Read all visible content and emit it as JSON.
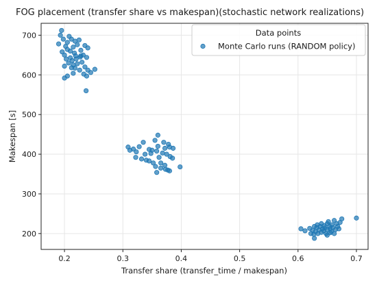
{
  "chart_data": {
    "type": "scatter",
    "title": "FOG placement (transfer share vs makespan)(stochastic network realizations)",
    "xlabel": "Transfer share (transfer_time / makespan)",
    "ylabel": "Makespan [s]",
    "xlim": [
      0.16,
      0.72
    ],
    "ylim": [
      160,
      730
    ],
    "xticks": [
      0.2,
      0.3,
      0.4,
      0.5,
      0.6,
      0.7
    ],
    "xtick_labels": [
      "0.2",
      "0.3",
      "0.4",
      "0.5",
      "0.6",
      "0.7"
    ],
    "yticks": [
      200,
      300,
      400,
      500,
      600,
      700
    ],
    "ytick_labels": [
      "200",
      "300",
      "400",
      "500",
      "600",
      "700"
    ],
    "grid": true,
    "legend": {
      "title": "Data points",
      "placement": "top-right"
    },
    "series": [
      {
        "name": "Monte Carlo runs (RANDOM policy)",
        "color": "#1f77b4",
        "points": [
          {
            "x": 0.195,
            "y": 712
          },
          {
            "x": 0.193,
            "y": 700
          },
          {
            "x": 0.19,
            "y": 678
          },
          {
            "x": 0.198,
            "y": 690
          },
          {
            "x": 0.202,
            "y": 672
          },
          {
            "x": 0.208,
            "y": 697
          },
          {
            "x": 0.212,
            "y": 690
          },
          {
            "x": 0.218,
            "y": 685
          },
          {
            "x": 0.225,
            "y": 688
          },
          {
            "x": 0.215,
            "y": 670
          },
          {
            "x": 0.222,
            "y": 676
          },
          {
            "x": 0.235,
            "y": 674
          },
          {
            "x": 0.24,
            "y": 668
          },
          {
            "x": 0.196,
            "y": 658
          },
          {
            "x": 0.205,
            "y": 664
          },
          {
            "x": 0.2,
            "y": 650
          },
          {
            "x": 0.21,
            "y": 660
          },
          {
            "x": 0.217,
            "y": 655
          },
          {
            "x": 0.228,
            "y": 662
          },
          {
            "x": 0.232,
            "y": 650
          },
          {
            "x": 0.227,
            "y": 645
          },
          {
            "x": 0.238,
            "y": 644
          },
          {
            "x": 0.203,
            "y": 640
          },
          {
            "x": 0.21,
            "y": 643
          },
          {
            "x": 0.213,
            "y": 636
          },
          {
            "x": 0.22,
            "y": 640
          },
          {
            "x": 0.207,
            "y": 630
          },
          {
            "x": 0.215,
            "y": 625
          },
          {
            "x": 0.222,
            "y": 628
          },
          {
            "x": 0.23,
            "y": 632
          },
          {
            "x": 0.2,
            "y": 622
          },
          {
            "x": 0.212,
            "y": 618
          },
          {
            "x": 0.218,
            "y": 617
          },
          {
            "x": 0.235,
            "y": 620
          },
          {
            "x": 0.24,
            "y": 612
          },
          {
            "x": 0.226,
            "y": 612
          },
          {
            "x": 0.245,
            "y": 606
          },
          {
            "x": 0.252,
            "y": 614
          },
          {
            "x": 0.233,
            "y": 602
          },
          {
            "x": 0.238,
            "y": 597
          },
          {
            "x": 0.205,
            "y": 597
          },
          {
            "x": 0.2,
            "y": 592
          },
          {
            "x": 0.215,
            "y": 604
          },
          {
            "x": 0.237,
            "y": 560
          },
          {
            "x": 0.228,
            "y": 648
          },
          {
            "x": 0.219,
            "y": 648
          },
          {
            "x": 0.205,
            "y": 682
          },
          {
            "x": 0.309,
            "y": 418
          },
          {
            "x": 0.312,
            "y": 410
          },
          {
            "x": 0.318,
            "y": 413
          },
          {
            "x": 0.323,
            "y": 406
          },
          {
            "x": 0.328,
            "y": 419
          },
          {
            "x": 0.322,
            "y": 392
          },
          {
            "x": 0.335,
            "y": 430
          },
          {
            "x": 0.338,
            "y": 400
          },
          {
            "x": 0.345,
            "y": 412
          },
          {
            "x": 0.348,
            "y": 402
          },
          {
            "x": 0.34,
            "y": 385
          },
          {
            "x": 0.345,
            "y": 383
          },
          {
            "x": 0.355,
            "y": 435
          },
          {
            "x": 0.36,
            "y": 448
          },
          {
            "x": 0.36,
            "y": 420
          },
          {
            "x": 0.358,
            "y": 408
          },
          {
            "x": 0.352,
            "y": 378
          },
          {
            "x": 0.356,
            "y": 369
          },
          {
            "x": 0.358,
            "y": 354
          },
          {
            "x": 0.362,
            "y": 392
          },
          {
            "x": 0.365,
            "y": 378
          },
          {
            "x": 0.368,
            "y": 403
          },
          {
            "x": 0.37,
            "y": 430
          },
          {
            "x": 0.372,
            "y": 415
          },
          {
            "x": 0.375,
            "y": 400
          },
          {
            "x": 0.378,
            "y": 425
          },
          {
            "x": 0.38,
            "y": 418
          },
          {
            "x": 0.372,
            "y": 372
          },
          {
            "x": 0.377,
            "y": 360
          },
          {
            "x": 0.381,
            "y": 394
          },
          {
            "x": 0.385,
            "y": 390
          },
          {
            "x": 0.386,
            "y": 415
          },
          {
            "x": 0.365,
            "y": 365
          },
          {
            "x": 0.373,
            "y": 362
          },
          {
            "x": 0.38,
            "y": 358
          },
          {
            "x": 0.398,
            "y": 368
          },
          {
            "x": 0.35,
            "y": 410
          },
          {
            "x": 0.332,
            "y": 388
          },
          {
            "x": 0.605,
            "y": 212
          },
          {
            "x": 0.612,
            "y": 207
          },
          {
            "x": 0.62,
            "y": 213
          },
          {
            "x": 0.622,
            "y": 200
          },
          {
            "x": 0.625,
            "y": 208
          },
          {
            "x": 0.627,
            "y": 198
          },
          {
            "x": 0.628,
            "y": 218
          },
          {
            "x": 0.63,
            "y": 205
          },
          {
            "x": 0.632,
            "y": 215
          },
          {
            "x": 0.633,
            "y": 222
          },
          {
            "x": 0.634,
            "y": 200
          },
          {
            "x": 0.636,
            "y": 209
          },
          {
            "x": 0.638,
            "y": 218
          },
          {
            "x": 0.64,
            "y": 225
          },
          {
            "x": 0.64,
            "y": 203
          },
          {
            "x": 0.642,
            "y": 212
          },
          {
            "x": 0.644,
            "y": 207
          },
          {
            "x": 0.645,
            "y": 220
          },
          {
            "x": 0.646,
            "y": 214
          },
          {
            "x": 0.648,
            "y": 200
          },
          {
            "x": 0.65,
            "y": 225
          },
          {
            "x": 0.65,
            "y": 210
          },
          {
            "x": 0.652,
            "y": 230
          },
          {
            "x": 0.654,
            "y": 218
          },
          {
            "x": 0.655,
            "y": 212
          },
          {
            "x": 0.657,
            "y": 205
          },
          {
            "x": 0.658,
            "y": 222
          },
          {
            "x": 0.66,
            "y": 215
          },
          {
            "x": 0.662,
            "y": 233
          },
          {
            "x": 0.662,
            "y": 200
          },
          {
            "x": 0.664,
            "y": 210
          },
          {
            "x": 0.666,
            "y": 225
          },
          {
            "x": 0.668,
            "y": 218
          },
          {
            "x": 0.67,
            "y": 212
          },
          {
            "x": 0.672,
            "y": 228
          },
          {
            "x": 0.675,
            "y": 237
          },
          {
            "x": 0.65,
            "y": 196
          },
          {
            "x": 0.628,
            "y": 188
          },
          {
            "x": 0.7,
            "y": 239
          },
          {
            "x": 0.655,
            "y": 202
          }
        ]
      }
    ]
  }
}
